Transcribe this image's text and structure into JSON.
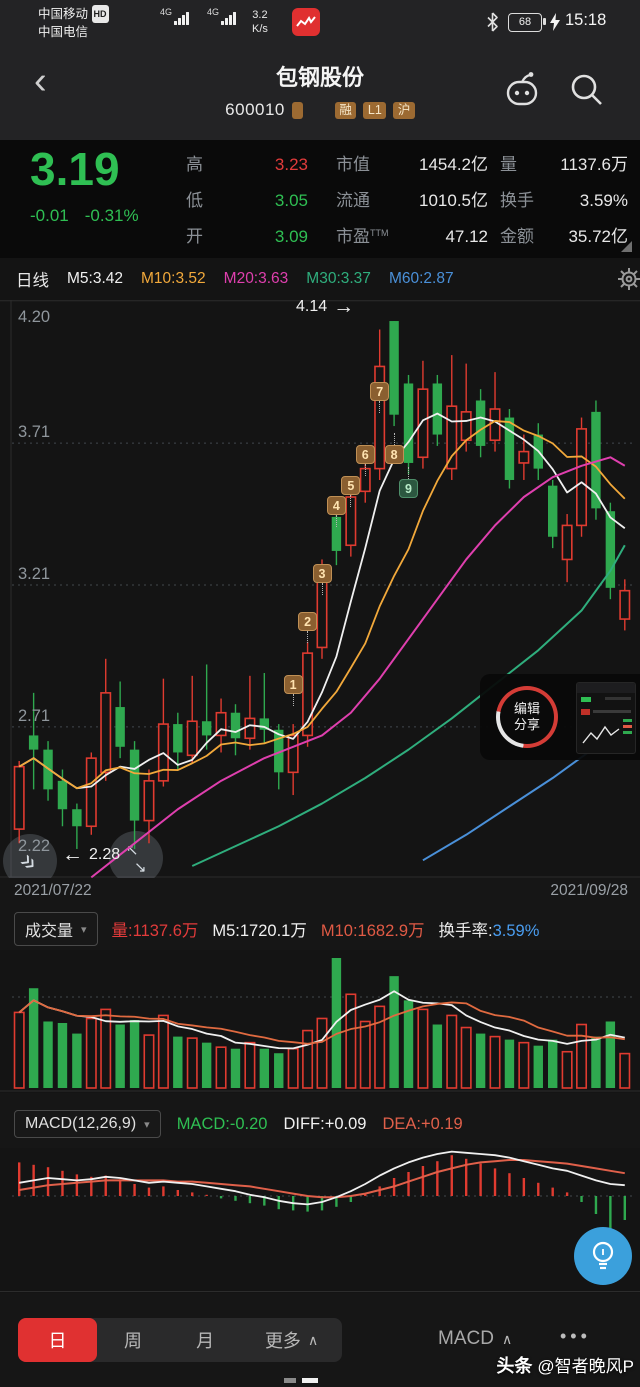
{
  "status_bar": {
    "carrier1": "中国移动",
    "hd": "HD",
    "carrier2": "中国电信",
    "net1": "4G",
    "net2": "4G",
    "speed": "3.2",
    "speed_unit": "K/s",
    "battery": "68",
    "time": "15:18"
  },
  "header": {
    "title": "包钢股份",
    "code": "600010",
    "badges": [
      "融",
      "L1",
      "沪"
    ]
  },
  "quote": {
    "price": "3.19",
    "change": "-0.01",
    "change_pct": "-0.31%",
    "high": {
      "label": "高",
      "value": "3.23"
    },
    "low": {
      "label": "低",
      "value": "3.05"
    },
    "open": {
      "label": "开",
      "value": "3.09"
    },
    "cap": {
      "label": "市值",
      "value": "1454.2亿"
    },
    "float": {
      "label": "流通",
      "value": "1010.5亿"
    },
    "pe": {
      "label": "市盈",
      "sup": "TTM",
      "value": "47.12"
    },
    "vol": {
      "label": "量",
      "value": "1137.6万"
    },
    "turn": {
      "label": "换手",
      "value": "3.59%"
    },
    "amount": {
      "label": "金额",
      "value": "35.72亿"
    }
  },
  "ma_bar": {
    "period": "日线",
    "m5": "M5:3.42",
    "m10": "M10:3.52",
    "m20": "M20:3.63",
    "m30": "M30:3.37",
    "m60": "M60:2.87"
  },
  "dates": {
    "start": "2021/07/22",
    "end": "2021/09/28"
  },
  "volume_bar": {
    "selector": "成交量",
    "vol": "量:1137.6万",
    "m5": "M5:1720.1万",
    "m10": "M10:1682.9万",
    "turnover_label": "换手率:",
    "turnover_value": "3.59%"
  },
  "macd_bar": {
    "selector": "MACD(12,26,9)",
    "macd": "MACD:-0.20",
    "diff": "DIFF:+0.09",
    "dea": "DEA:+0.19"
  },
  "annotations": {
    "high": "4.14",
    "low": "2.28"
  },
  "share_overlay": {
    "line1": "编辑",
    "line2": "分享"
  },
  "bottom_nav": {
    "tabs": [
      "日",
      "周",
      "月"
    ],
    "more": "更多",
    "indicator": "MACD"
  },
  "watermark": {
    "brand": "头条",
    "handle": "@智者晚风P"
  },
  "icons": {
    "back": "‹",
    "arrow_right": "→",
    "arrow_left": "←",
    "triangle_down": "▾",
    "chevron_up": "∧",
    "fast_forward": "»",
    "expand_tl": "↖",
    "expand_br": "↘",
    "dots": "•••"
  },
  "colors": {
    "up": "#e03b30",
    "down": "#2fa94f",
    "price_green": "#2fbf53",
    "ma5": "#f0f0f0",
    "ma10": "#f2a93b",
    "ma20": "#df3fae",
    "ma30": "#2fae7d",
    "ma60": "#4a90d9",
    "vol_m5": "#f0f0f0",
    "vol_m10": "#e06a40",
    "diff": "#f0f0f0",
    "dea": "#e0604a",
    "turnover_blue": "#4a9df0",
    "accent_red": "#e03131",
    "fab_blue": "#3ba0dc"
  },
  "chart_data": {
    "type": "candlestick+volume+macd",
    "title": "包钢股份 600010 日线",
    "x_range": [
      "2021/07/22",
      "2021/09/28"
    ],
    "price_axis_ticks": [
      4.2,
      3.71,
      3.21,
      2.71,
      2.22
    ],
    "price_ylim": [
      2.22,
      4.2
    ],
    "grid": "dashed horizontal",
    "ma_values": {
      "m5": 3.42,
      "m10": 3.52,
      "m20": 3.63,
      "m30": 3.37,
      "m60": 2.87
    },
    "candles": [
      [
        2.35,
        2.57,
        2.59,
        2.3,
        "u"
      ],
      [
        2.68,
        2.63,
        2.83,
        2.49,
        "d"
      ],
      [
        2.63,
        2.49,
        2.66,
        2.45,
        "d"
      ],
      [
        2.52,
        2.42,
        2.56,
        2.36,
        "d"
      ],
      [
        2.42,
        2.36,
        2.44,
        2.28,
        "d"
      ],
      [
        2.36,
        2.6,
        2.62,
        2.33,
        "u"
      ],
      [
        2.55,
        2.83,
        2.95,
        2.52,
        "u"
      ],
      [
        2.78,
        2.64,
        2.87,
        2.6,
        "d"
      ],
      [
        2.63,
        2.38,
        2.66,
        2.28,
        "d"
      ],
      [
        2.38,
        2.52,
        2.56,
        2.3,
        "u"
      ],
      [
        2.52,
        2.72,
        2.88,
        2.5,
        "u"
      ],
      [
        2.72,
        2.62,
        2.76,
        2.56,
        "d"
      ],
      [
        2.61,
        2.73,
        2.89,
        2.58,
        "u"
      ],
      [
        2.73,
        2.68,
        2.93,
        2.63,
        "d"
      ],
      [
        2.68,
        2.76,
        2.81,
        2.62,
        "u"
      ],
      [
        2.76,
        2.67,
        2.79,
        2.61,
        "d"
      ],
      [
        2.67,
        2.74,
        2.89,
        2.63,
        "u"
      ],
      [
        2.74,
        2.7,
        2.9,
        2.65,
        "d"
      ],
      [
        2.7,
        2.55,
        2.72,
        2.49,
        "d"
      ],
      [
        2.55,
        2.68,
        2.72,
        2.47,
        "u"
      ],
      [
        2.68,
        2.97,
        3.01,
        2.64,
        "u"
      ],
      [
        2.99,
        3.26,
        3.3,
        2.95,
        "u"
      ],
      [
        3.45,
        3.33,
        3.47,
        3.28,
        "d"
      ],
      [
        3.35,
        3.52,
        3.56,
        3.31,
        "u"
      ],
      [
        3.54,
        3.62,
        3.66,
        3.5,
        "u"
      ],
      [
        3.62,
        3.98,
        4.11,
        3.58,
        "u"
      ],
      [
        4.14,
        3.81,
        4.14,
        3.77,
        "d"
      ],
      [
        3.92,
        3.64,
        3.95,
        3.6,
        "d"
      ],
      [
        3.66,
        3.9,
        4.0,
        3.62,
        "u"
      ],
      [
        3.92,
        3.74,
        3.95,
        3.7,
        "d"
      ],
      [
        3.62,
        3.84,
        4.02,
        3.58,
        "u"
      ],
      [
        3.72,
        3.82,
        3.99,
        3.68,
        "u"
      ],
      [
        3.86,
        3.7,
        3.9,
        3.66,
        "d"
      ],
      [
        3.72,
        3.83,
        3.96,
        3.68,
        "u"
      ],
      [
        3.8,
        3.58,
        3.83,
        3.55,
        "d"
      ],
      [
        3.64,
        3.68,
        3.74,
        3.58,
        "u"
      ],
      [
        3.74,
        3.62,
        3.78,
        3.58,
        "d"
      ],
      [
        3.56,
        3.38,
        3.58,
        3.34,
        "d"
      ],
      [
        3.3,
        3.42,
        3.46,
        3.22,
        "u"
      ],
      [
        3.42,
        3.76,
        3.8,
        3.38,
        "u"
      ],
      [
        3.82,
        3.48,
        3.86,
        3.44,
        "d"
      ],
      [
        3.47,
        3.2,
        3.5,
        3.16,
        "d"
      ],
      [
        3.09,
        3.19,
        3.23,
        3.05,
        "u"
      ]
    ],
    "ma20_points": [
      [
        5,
        2.18
      ],
      [
        8,
        2.3
      ],
      [
        11,
        2.42
      ],
      [
        14,
        2.52
      ],
      [
        17,
        2.6
      ],
      [
        19,
        2.64
      ],
      [
        21,
        2.68
      ],
      [
        23,
        2.76
      ],
      [
        25,
        2.88
      ],
      [
        27,
        3.02
      ],
      [
        29,
        3.16
      ],
      [
        31,
        3.3
      ],
      [
        33,
        3.42
      ],
      [
        35,
        3.52
      ],
      [
        37,
        3.59
      ],
      [
        39,
        3.63
      ],
      [
        41,
        3.66
      ],
      [
        42,
        3.63
      ]
    ],
    "ma30_points": [
      [
        12,
        2.22
      ],
      [
        15,
        2.29
      ],
      [
        18,
        2.36
      ],
      [
        21,
        2.44
      ],
      [
        24,
        2.53
      ],
      [
        27,
        2.63
      ],
      [
        30,
        2.74
      ],
      [
        33,
        2.86
      ],
      [
        36,
        2.98
      ],
      [
        39,
        3.12
      ],
      [
        41,
        3.26
      ],
      [
        42,
        3.35
      ]
    ],
    "ma60_points": [
      [
        28,
        2.24
      ],
      [
        31,
        2.33
      ],
      [
        34,
        2.43
      ],
      [
        37,
        2.53
      ],
      [
        40,
        2.64
      ],
      [
        42,
        2.73
      ]
    ],
    "badges": [
      {
        "n": "1",
        "i": 19,
        "price": 2.86,
        "kind": "buy",
        "tail": "down"
      },
      {
        "n": "2",
        "i": 20,
        "price": 3.08,
        "kind": "buy",
        "tail": "down"
      },
      {
        "n": "3",
        "i": 21,
        "price": 3.25,
        "kind": "buy",
        "tail": "down"
      },
      {
        "n": "4",
        "i": 22,
        "price": 3.49,
        "kind": "buy",
        "tail": "down"
      },
      {
        "n": "5",
        "i": 23,
        "price": 3.56,
        "kind": "buy",
        "tail": "down"
      },
      {
        "n": "6",
        "i": 24,
        "price": 3.67,
        "kind": "buy",
        "tail": "down"
      },
      {
        "n": "7",
        "i": 25,
        "price": 3.89,
        "kind": "buy",
        "tail": "down"
      },
      {
        "n": "8",
        "i": 26,
        "price": 3.67,
        "kind": "buy",
        "tail": "up"
      },
      {
        "n": "9",
        "i": 27,
        "price": 3.55,
        "kind": "sell",
        "tail": "up"
      }
    ],
    "annotated_high": {
      "value": 4.14,
      "index": 26
    },
    "annotated_low": {
      "value": 2.28,
      "index": 4
    },
    "volume_wan": [
      2500,
      3300,
      2200,
      2150,
      1800,
      2300,
      2600,
      2100,
      2250,
      1750,
      2400,
      1700,
      1650,
      1500,
      1350,
      1300,
      1500,
      1300,
      1150,
      1300,
      1900,
      2300,
      4300,
      3100,
      2200,
      2700,
      3700,
      2900,
      2600,
      2100,
      2400,
      2000,
      1800,
      1700,
      1600,
      1500,
      1400,
      1600,
      1200,
      2100,
      1700,
      2200,
      1137.6
    ],
    "volume_ylim": [
      0,
      4300
    ],
    "macd": {
      "hist": [
        0.28,
        0.26,
        0.24,
        0.21,
        0.18,
        0.16,
        0.17,
        0.14,
        0.1,
        0.07,
        0.08,
        0.05,
        0.03,
        0.01,
        -0.02,
        -0.04,
        -0.06,
        -0.08,
        -0.11,
        -0.12,
        -0.13,
        -0.12,
        -0.09,
        -0.05,
        0.02,
        0.08,
        0.15,
        0.2,
        0.25,
        0.29,
        0.34,
        0.31,
        0.27,
        0.23,
        0.19,
        0.15,
        0.11,
        0.07,
        0.03,
        -0.05,
        -0.15,
        -0.35,
        -0.2
      ],
      "diff": [
        0.11,
        0.13,
        0.15,
        0.14,
        0.13,
        0.14,
        0.16,
        0.15,
        0.13,
        0.11,
        0.12,
        0.11,
        0.1,
        0.08,
        0.06,
        0.04,
        0.01,
        -0.01,
        -0.04,
        -0.06,
        -0.07,
        -0.05,
        -0.01,
        0.04,
        0.1,
        0.17,
        0.23,
        0.28,
        0.32,
        0.35,
        0.37,
        0.36,
        0.35,
        0.34,
        0.32,
        0.29,
        0.26,
        0.23,
        0.21,
        0.17,
        0.13,
        0.1,
        0.09
      ],
      "dea": [
        0.05,
        0.07,
        0.09,
        0.1,
        0.11,
        0.12,
        0.13,
        0.13,
        0.13,
        0.13,
        0.13,
        0.12,
        0.12,
        0.11,
        0.1,
        0.09,
        0.08,
        0.06,
        0.04,
        0.02,
        0.0,
        -0.01,
        -0.01,
        0.0,
        0.02,
        0.05,
        0.08,
        0.12,
        0.16,
        0.2,
        0.23,
        0.26,
        0.28,
        0.29,
        0.3,
        0.3,
        0.29,
        0.28,
        0.27,
        0.25,
        0.23,
        0.21,
        0.19
      ],
      "ylim": [
        -0.8,
        0.4
      ]
    }
  }
}
